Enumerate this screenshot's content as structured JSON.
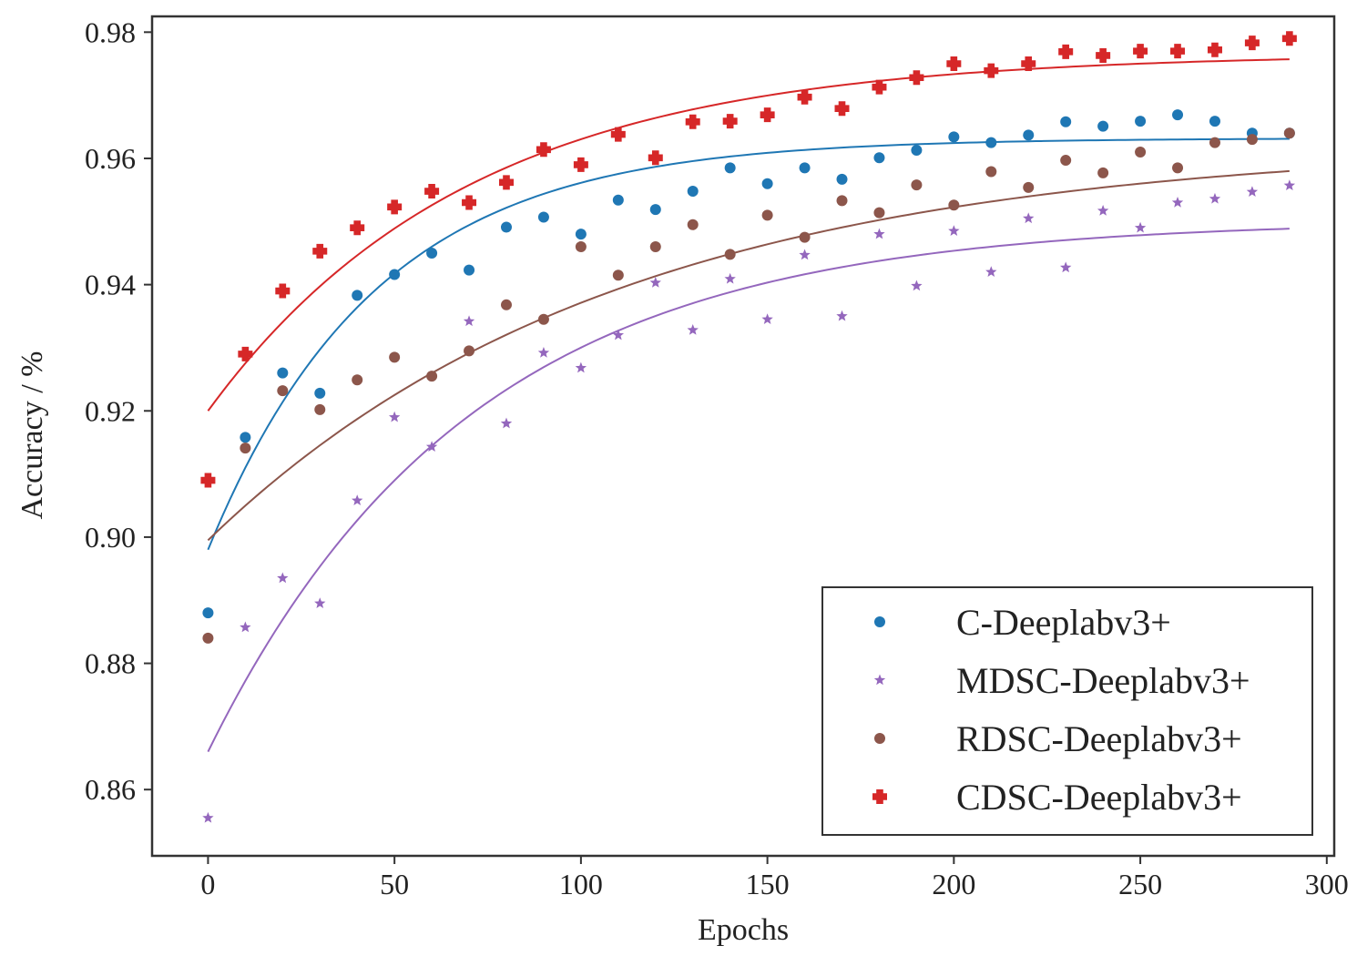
{
  "chart_data": {
    "type": "scatter",
    "title": "",
    "xlabel": "Epochs",
    "ylabel": "Accuracy / %",
    "xlim": [
      -15,
      302
    ],
    "ylim": [
      0.8495,
      0.9825
    ],
    "xticks": [
      0,
      50,
      100,
      150,
      200,
      250,
      300
    ],
    "xtick_labels": [
      "0",
      "50",
      "100",
      "150",
      "200",
      "250",
      "300"
    ],
    "yticks": [
      0.86,
      0.88,
      0.9,
      0.92,
      0.94,
      0.96,
      0.98
    ],
    "ytick_labels": [
      "0.86",
      "0.88",
      "0.90",
      "0.92",
      "0.94",
      "0.96",
      "0.98"
    ],
    "grid": false,
    "legend_position": "bottom-right",
    "x": [
      0,
      10,
      20,
      30,
      40,
      50,
      60,
      70,
      80,
      90,
      100,
      110,
      120,
      130,
      140,
      150,
      160,
      170,
      180,
      190,
      200,
      210,
      220,
      230,
      240,
      250,
      260,
      270,
      280,
      290
    ],
    "series": [
      {
        "name": "C-Deeplabv3+",
        "color": "#1f77b4",
        "marker": "circle",
        "values": [
          0.888,
          0.9158,
          0.926,
          0.9228,
          0.9383,
          0.9416,
          0.945,
          0.9423,
          0.9491,
          0.9507,
          0.948,
          0.9534,
          0.9519,
          0.9548,
          0.9585,
          0.956,
          0.9585,
          0.9567,
          0.9601,
          0.9613,
          0.9634,
          0.9625,
          0.9637,
          0.9658,
          0.9651,
          0.9659,
          0.9669,
          0.9659,
          0.964,
          0.964
        ],
        "fit": {
          "y0": 0.898,
          "asymptote": 0.9632,
          "tau": 45
        }
      },
      {
        "name": "MDSC-Deeplabv3+",
        "color": "#9467bd",
        "marker": "star",
        "values": [
          0.8555,
          0.8857,
          0.8935,
          0.8895,
          0.9058,
          0.919,
          0.9143,
          0.9342,
          0.918,
          0.9292,
          0.9268,
          0.932,
          0.9403,
          0.9328,
          0.9409,
          0.9345,
          0.9447,
          0.935,
          0.948,
          0.9398,
          0.9485,
          0.942,
          0.9505,
          0.9427,
          0.9517,
          0.949,
          0.953,
          0.9536,
          0.9547,
          0.9557
        ],
        "fit": {
          "y0": 0.866,
          "asymptote": 0.9502,
          "tau": 70
        }
      },
      {
        "name": "RDSC-Deeplabv3+",
        "color": "#8c564b",
        "marker": "circle",
        "values": [
          0.884,
          0.9141,
          0.9232,
          0.9202,
          0.9249,
          0.9285,
          0.9255,
          0.9295,
          0.9368,
          0.9345,
          0.946,
          0.9415,
          0.946,
          0.9495,
          0.9448,
          0.951,
          0.9475,
          0.9533,
          0.9514,
          0.9558,
          0.9526,
          0.9579,
          0.9554,
          0.9597,
          0.9577,
          0.961,
          0.9585,
          0.9625,
          0.963,
          0.964
        ],
        "fit": {
          "y0": 0.8995,
          "asymptote": 0.9625,
          "tau": 110
        }
      },
      {
        "name": "CDSC-Deeplabv3+",
        "color": "#d62728",
        "marker": "plus",
        "values": [
          0.909,
          0.929,
          0.939,
          0.9453,
          0.949,
          0.9523,
          0.9548,
          0.953,
          0.9562,
          0.9614,
          0.959,
          0.9638,
          0.9601,
          0.9658,
          0.9659,
          0.9669,
          0.9697,
          0.9679,
          0.9713,
          0.9728,
          0.975,
          0.9739,
          0.975,
          0.9769,
          0.9763,
          0.977,
          0.977,
          0.9772,
          0.9783,
          0.979
        ],
        "fit": {
          "y0": 0.92,
          "asymptote": 0.9766,
          "tau": 70
        }
      }
    ]
  }
}
